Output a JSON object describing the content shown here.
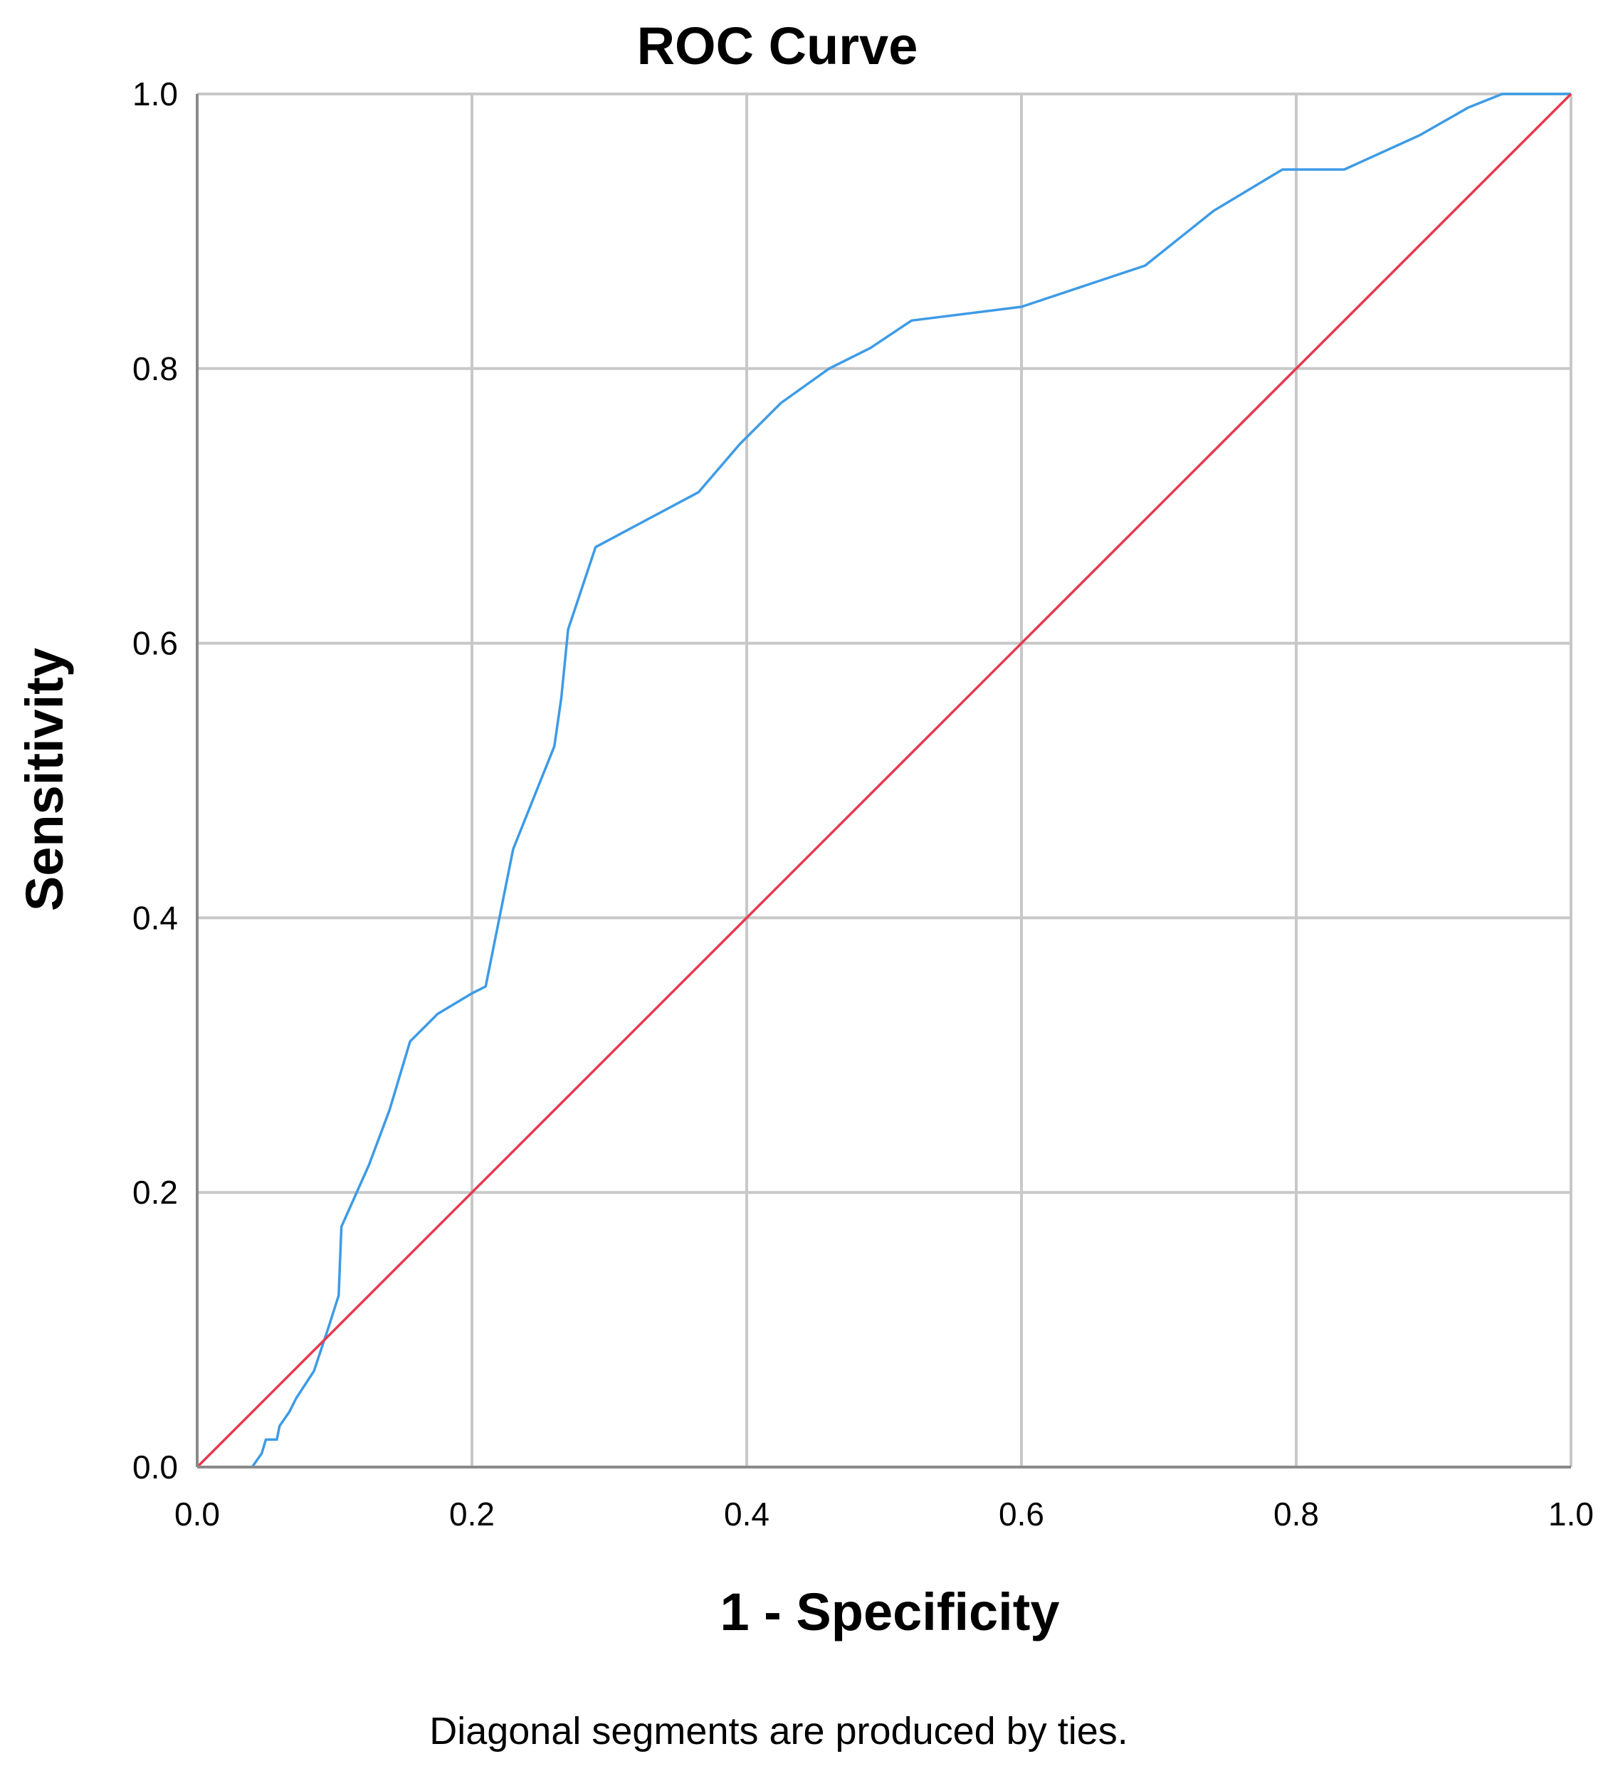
{
  "chart_data": {
    "type": "line",
    "title": "ROC Curve",
    "xlabel": "1 - Specificity",
    "ylabel": "Sensitivity",
    "footnote": "Diagonal segments are produced by ties.",
    "xlim": [
      0.0,
      1.0
    ],
    "ylim": [
      0.0,
      1.0
    ],
    "xticks": [
      "0.0",
      "0.2",
      "0.4",
      "0.6",
      "0.8",
      "1.0"
    ],
    "yticks": [
      "0.0",
      "0.2",
      "0.4",
      "0.6",
      "0.8",
      "1.0"
    ],
    "grid": true,
    "series": [
      {
        "color": "#3d9be6",
        "x": [
          0.0,
          0.04,
          0.047,
          0.05,
          0.058,
          0.06,
          0.067,
          0.072,
          0.085,
          0.095,
          0.103,
          0.105,
          0.125,
          0.14,
          0.155,
          0.175,
          0.2,
          0.21,
          0.22,
          0.23,
          0.25,
          0.26,
          0.265,
          0.27,
          0.29,
          0.365,
          0.395,
          0.425,
          0.46,
          0.49,
          0.52,
          0.6,
          0.69,
          0.74,
          0.79,
          0.835,
          0.89,
          0.925,
          0.95,
          1.0
        ],
        "y": [
          0.0,
          0.0,
          0.01,
          0.02,
          0.02,
          0.03,
          0.04,
          0.05,
          0.07,
          0.1,
          0.125,
          0.175,
          0.22,
          0.26,
          0.31,
          0.33,
          0.345,
          0.35,
          0.4,
          0.45,
          0.5,
          0.525,
          0.56,
          0.61,
          0.67,
          0.71,
          0.745,
          0.775,
          0.8,
          0.815,
          0.835,
          0.845,
          0.875,
          0.915,
          0.945,
          0.945,
          0.97,
          0.99,
          1.0,
          1.0
        ]
      },
      {
        "color": "#e8384f",
        "x": [
          0.0,
          1.0
        ],
        "y": [
          0.0,
          1.0
        ]
      }
    ]
  }
}
